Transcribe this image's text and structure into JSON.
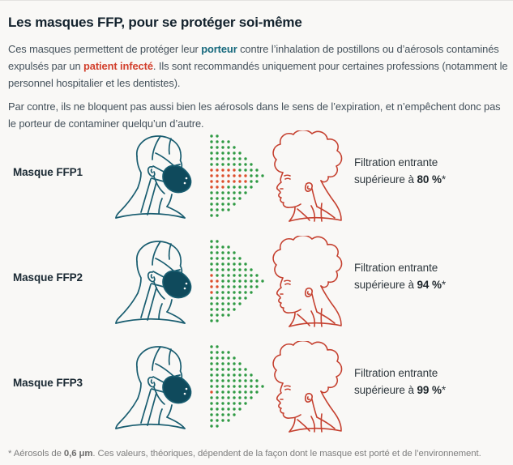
{
  "header": {
    "title": "Les masques FFP, pour se protéger soi-même"
  },
  "intro": {
    "p1": [
      {
        "t": "Ces masques permettent de protéger leur "
      },
      {
        "t": "porteur",
        "s": "teal"
      },
      {
        "t": " contre l’inhalation de postillons ou d’aérosols contaminés expulsés par un "
      },
      {
        "t": "patient infecté",
        "s": "red"
      },
      {
        "t": ". Ils sont recommandés uniquement pour certaines professions (notamment le personnel hospitalier et les dentistes)."
      }
    ],
    "p2": [
      {
        "t": "Par contre, ils ne bloquent pas aussi bien les aérosols dans le sens de l’expiration, et n’empêchent donc pas le porteur de contaminer quelqu’un d’autre."
      }
    ]
  },
  "rows": [
    {
      "label": "Masque FFP1",
      "filtration_line1": "Filtration entrante",
      "filtration_prefix": "supérieure à ",
      "filtration_value": "80 %",
      "filtration_suffix": "*",
      "red_dots": [
        [
          0,
          -1
        ],
        [
          1,
          -1
        ],
        [
          2,
          -1
        ],
        [
          3,
          -1
        ],
        [
          4,
          -1
        ],
        [
          0,
          0
        ],
        [
          1,
          0
        ],
        [
          2,
          0
        ],
        [
          3,
          0
        ],
        [
          4,
          0
        ],
        [
          5,
          0
        ],
        [
          6,
          0
        ],
        [
          0,
          1
        ],
        [
          1,
          1
        ],
        [
          2,
          1
        ],
        [
          3,
          1
        ],
        [
          4,
          1
        ],
        [
          5,
          1
        ],
        [
          6,
          1
        ],
        [
          0,
          2
        ],
        [
          1,
          2
        ],
        [
          2,
          2
        ]
      ]
    },
    {
      "label": "Masque FFP2",
      "filtration_line1": "Filtration entrante",
      "filtration_prefix": "supérieure à ",
      "filtration_value": "94 %",
      "filtration_suffix": "*",
      "red_dots": [
        [
          0,
          -1
        ],
        [
          0,
          0
        ],
        [
          1,
          0
        ],
        [
          0,
          1
        ],
        [
          1,
          1
        ],
        [
          0,
          2
        ]
      ]
    },
    {
      "label": "Masque FFP3",
      "filtration_line1": "Filtration entrante",
      "filtration_prefix": "supérieure à ",
      "filtration_value": "99 %",
      "filtration_suffix": "*",
      "red_dots": [
        [
          0,
          1
        ]
      ]
    }
  ],
  "aerosol_cone": {
    "columns": [
      15,
      15,
      13,
      13,
      11,
      9,
      7,
      5,
      3,
      1
    ],
    "pitch": 7,
    "dot_radius": 1.7,
    "green_color": "#2f9a44",
    "red_color": "#dd4f2c"
  },
  "footnote": [
    {
      "t": "* Aérosols de "
    },
    {
      "t": "0,6 μm",
      "s": "bold"
    },
    {
      "t": ". Ces valeurs, théoriques, dépendent de la façon dont le masque est porté et de l’environnement."
    }
  ],
  "colors": {
    "background": "#f9f8f6",
    "title_text": "#14232e",
    "body_text": "#44515b",
    "teal_highlight": "#15687c",
    "red_highlight": "#d23f2c",
    "masked_person_stroke": "#195d70",
    "mask_fill": "#0f4a5c",
    "infected_person_stroke": "#c5402f",
    "footnote_text": "#7f7f7f"
  }
}
